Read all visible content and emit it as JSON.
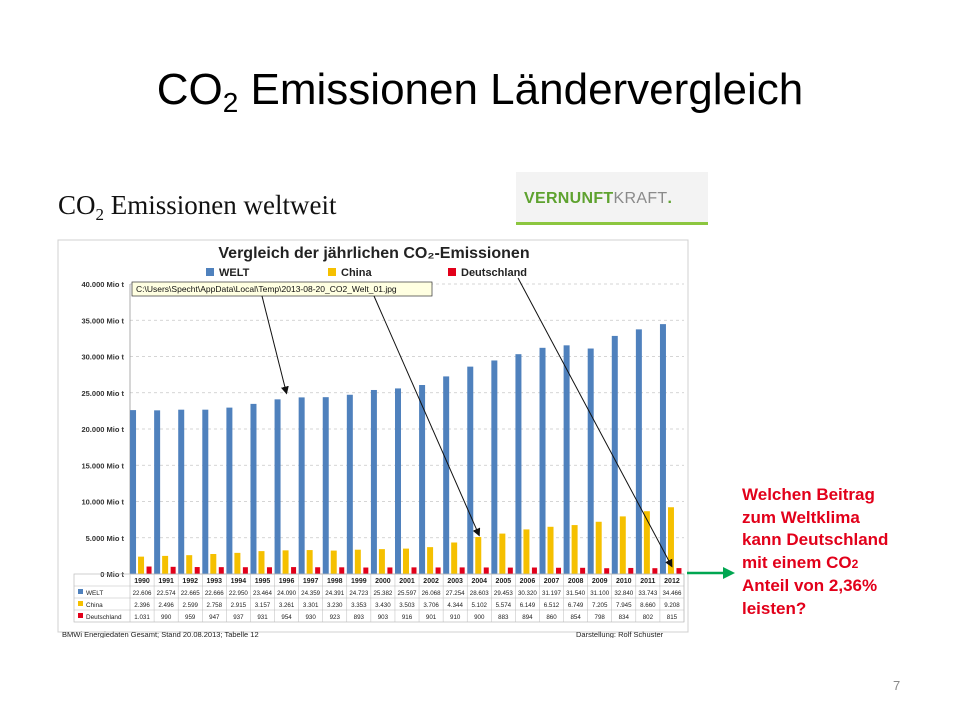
{
  "slide": {
    "title_main": "CO",
    "title_sub": "2",
    "title_rest": " Emissionen Ländervergleich",
    "page_number": "7"
  },
  "figure": {
    "title_main": "CO",
    "title_sub": "2",
    "title_rest": " Emissionen weltweit"
  },
  "logo": {
    "part1": "VERNUNFT",
    "part2": "KRAFT",
    "part3": "."
  },
  "tooltip": "C:\\Users\\Specht\\AppData\\Local\\Temp\\2013-08-20_CO2_Welt_01.jpg",
  "callout": {
    "line1": "Welchen Beitrag",
    "line2": "zum Weltklima",
    "line3": "kann Deutschland",
    "line4_main": "mit einem CO",
    "line4_sub": "2",
    "line5": "Anteil von 2,36%",
    "line6": "leisten?"
  },
  "colors": {
    "welt": "#4f81bd",
    "china": "#f5c000",
    "deutschland": "#e2001a",
    "callout": "#e2001a",
    "arrow": "#00a651"
  },
  "chart_data": {
    "type": "bar",
    "title": "Vergleich der jährlichen CO₂-Emissionen",
    "categories": [
      "1990",
      "1991",
      "1992",
      "1993",
      "1994",
      "1995",
      "1996",
      "1997",
      "1998",
      "1999",
      "2000",
      "2001",
      "2002",
      "2003",
      "2004",
      "2005",
      "2006",
      "2007",
      "2008",
      "2009",
      "2010",
      "2011",
      "2012"
    ],
    "series": [
      {
        "name": "WELT",
        "values": [
          22606,
          22574,
          22665,
          22666,
          22950,
          23464,
          24090,
          24359,
          24391,
          24723,
          25382,
          25597,
          26068,
          27254,
          28603,
          29453,
          30320,
          31197,
          31540,
          31100,
          32840,
          33743,
          34466
        ],
        "labels": [
          "22.606",
          "22.574",
          "22.665",
          "22.666",
          "22.950",
          "23.464",
          "24.090",
          "24.359",
          "24.391",
          "24.723",
          "25.382",
          "25.597",
          "26.068",
          "27.254",
          "28.603",
          "29.453",
          "30.320",
          "31.197",
          "31.540",
          "31.100",
          "32.840",
          "33.743",
          "34.466"
        ]
      },
      {
        "name": "China",
        "values": [
          2396,
          2496,
          2599,
          2758,
          2915,
          3157,
          3261,
          3301,
          3230,
          3353,
          3430,
          3503,
          3706,
          4344,
          5102,
          5574,
          6149,
          6512,
          6749,
          7205,
          7945,
          8660,
          9208
        ],
        "labels": [
          "2.396",
          "2.496",
          "2.599",
          "2.758",
          "2.915",
          "3.157",
          "3.261",
          "3.301",
          "3.230",
          "3.353",
          "3.430",
          "3.503",
          "3.706",
          "4.344",
          "5.102",
          "5.574",
          "6.149",
          "6.512",
          "6.749",
          "7.205",
          "7.945",
          "8.660",
          "9.208"
        ]
      },
      {
        "name": "Deutschland",
        "values": [
          1031,
          990,
          959,
          947,
          937,
          931,
          954,
          930,
          923,
          893,
          903,
          916,
          901,
          910,
          900,
          883,
          894,
          860,
          854,
          798,
          834,
          802,
          815
        ],
        "labels": [
          "1.031",
          "990",
          "959",
          "947",
          "937",
          "931",
          "954",
          "930",
          "923",
          "893",
          "903",
          "916",
          "901",
          "910",
          "900",
          "883",
          "894",
          "860",
          "854",
          "798",
          "834",
          "802",
          "815"
        ]
      }
    ],
    "yticks": [
      0,
      5000,
      10000,
      15000,
      20000,
      25000,
      30000,
      35000,
      40000
    ],
    "ytick_labels": [
      "0 Mio t",
      "5.000 Mio t",
      "10.000 Mio t",
      "15.000 Mio t",
      "20.000 Mio t",
      "25.000 Mio t",
      "30.000 Mio t",
      "35.000 Mio t",
      "40.000 Mio t"
    ],
    "ylim": [
      0,
      40000
    ],
    "grid": true,
    "legend_position": "top",
    "source_note": "BMWi Energiedaten Gesamt; Stand 20.08.2013; Tabelle 12",
    "credit": "Darstellung: Rolf Schuster"
  }
}
